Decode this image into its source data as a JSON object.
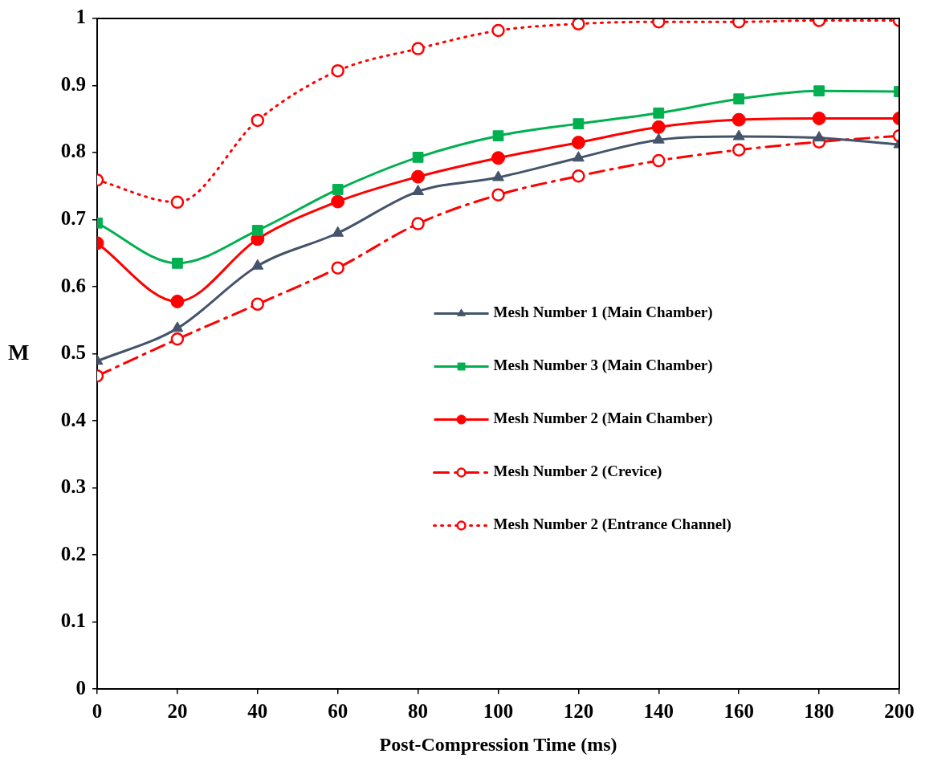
{
  "chart_data": {
    "type": "line",
    "xlabel": "Post-Compression Time (ms)",
    "ylabel": "M",
    "x": [
      0,
      20,
      40,
      60,
      80,
      100,
      120,
      140,
      160,
      180,
      200
    ],
    "series": [
      {
        "name": "Mesh Number 1 (Main Chamber)",
        "color": "#44546a",
        "marker": "triangle",
        "line_style": "solid",
        "values": [
          0.489,
          0.538,
          0.631,
          0.68,
          0.742,
          0.763,
          0.792,
          0.819,
          0.824,
          0.822,
          0.812
        ]
      },
      {
        "name": "Mesh Number 3 (Main Chamber)",
        "color": "#00b050",
        "marker": "square",
        "line_style": "solid",
        "values": [
          0.695,
          0.635,
          0.684,
          0.745,
          0.793,
          0.825,
          0.843,
          0.859,
          0.88,
          0.892,
          0.891
        ]
      },
      {
        "name": "Mesh Number 2 (Main Chamber)",
        "color": "#ff0000",
        "marker": "circle",
        "line_style": "solid",
        "values": [
          0.665,
          0.578,
          0.671,
          0.727,
          0.764,
          0.792,
          0.815,
          0.838,
          0.849,
          0.851,
          0.851
        ]
      },
      {
        "name": "Mesh Number 2 (Crevice)",
        "color": "#ff0000",
        "marker": "circle",
        "line_style": "dashed",
        "values": [
          0.467,
          0.522,
          0.574,
          0.628,
          0.694,
          0.737,
          0.765,
          0.788,
          0.804,
          0.816,
          0.825
        ]
      },
      {
        "name": "Mesh Number 2 (Entrance Channel)",
        "color": "#ff0000",
        "marker": "circle",
        "line_style": "dotted",
        "values": [
          0.759,
          0.726,
          0.848,
          0.922,
          0.955,
          0.982,
          0.992,
          0.995,
          0.995,
          0.997,
          0.997
        ]
      }
    ],
    "xlim": [
      0,
      200
    ],
    "xticks": [
      0,
      20,
      40,
      60,
      80,
      100,
      120,
      140,
      160,
      180,
      200
    ],
    "ylim": [
      0,
      1
    ],
    "yticks": [
      0,
      0.1,
      0.2,
      0.3,
      0.4,
      0.5,
      0.6,
      0.7,
      0.8,
      0.9,
      1
    ],
    "grid": false,
    "legend": "right"
  }
}
